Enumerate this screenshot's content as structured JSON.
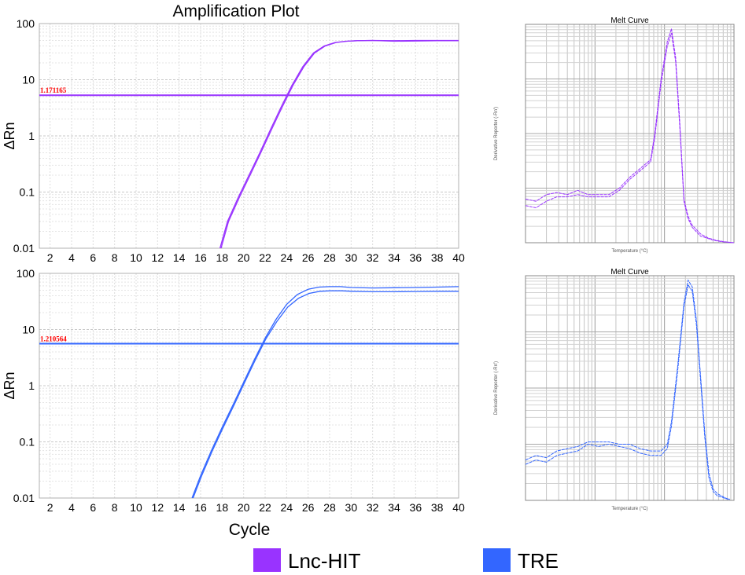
{
  "title": "Amplification Plot",
  "x_axis_label": "Cycle",
  "legend": [
    {
      "label": "Lnc-HIT",
      "color": "#9933ff"
    },
    {
      "label": "TRE",
      "color": "#3366ff"
    }
  ],
  "chart_data": [
    {
      "type": "line",
      "name": "amplification-lnc-hit",
      "title": "",
      "ylabel": "ΔRn",
      "yscale": "log",
      "xlim": [
        1,
        40
      ],
      "ylim": [
        0.01,
        100
      ],
      "x_ticks": [
        "2",
        "4",
        "6",
        "8",
        "10",
        "12",
        "14",
        "16",
        "18",
        "20",
        "22",
        "24",
        "26",
        "28",
        "30",
        "32",
        "34",
        "36",
        "38",
        "40"
      ],
      "y_ticks": [
        "100",
        "10",
        "1",
        "0.1",
        "0.01"
      ],
      "threshold": {
        "label": "1.171165",
        "value": 5.3
      },
      "color": "#9933ff",
      "series": [
        {
          "name": "rep1",
          "x": [
            17.8,
            18.5,
            19.5,
            20.5,
            21.5,
            22.5,
            23.5,
            24.5,
            25.5,
            26.5,
            27.5,
            28.5,
            29.5,
            30.5,
            32,
            34,
            36,
            38,
            40
          ],
          "values": [
            0.01,
            0.03,
            0.08,
            0.2,
            0.5,
            1.3,
            3.3,
            8,
            17,
            30,
            40,
            46,
            48.5,
            49.5,
            50,
            49.5,
            50,
            50,
            50
          ]
        },
        {
          "name": "rep2",
          "x": [
            17.9,
            18.6,
            19.6,
            20.6,
            21.6,
            22.6,
            23.6,
            24.6,
            25.6,
            26.6,
            27.6,
            28.6,
            29.6,
            30.6,
            32,
            34,
            36,
            38,
            40
          ],
          "values": [
            0.01,
            0.03,
            0.08,
            0.2,
            0.5,
            1.3,
            3.3,
            8,
            17,
            30,
            40,
            46,
            48.5,
            49.5,
            50,
            48.5,
            49,
            49.5,
            49.5
          ]
        }
      ]
    },
    {
      "type": "line",
      "name": "amplification-tre",
      "title": "",
      "ylabel": "ΔRn",
      "yscale": "log",
      "xlim": [
        1,
        40
      ],
      "ylim": [
        0.01,
        100
      ],
      "x_ticks": [
        "2",
        "4",
        "6",
        "8",
        "10",
        "12",
        "14",
        "16",
        "18",
        "20",
        "22",
        "24",
        "26",
        "28",
        "30",
        "32",
        "34",
        "36",
        "38",
        "40"
      ],
      "y_ticks": [
        "100",
        "10",
        "1",
        "0.1",
        "0.01"
      ],
      "threshold": {
        "label": "1.210564",
        "value": 5.6
      },
      "color": "#3366ff",
      "series": [
        {
          "name": "rep1",
          "x": [
            15.2,
            16,
            17,
            18,
            19,
            20,
            21,
            22,
            23,
            24,
            25,
            26,
            27,
            28,
            29,
            30,
            32,
            34,
            36,
            38,
            40
          ],
          "values": [
            0.01,
            0.025,
            0.07,
            0.18,
            0.45,
            1.15,
            2.9,
            7,
            15,
            28,
            42,
            52,
            57,
            58,
            58,
            56,
            55,
            55.5,
            56,
            57,
            58
          ]
        },
        {
          "name": "rep2",
          "x": [
            15.3,
            16.1,
            17.1,
            18.1,
            19.1,
            20.1,
            21.1,
            22.1,
            23.1,
            24.1,
            25.1,
            26.1,
            27.1,
            28.1,
            29.1,
            30.1,
            32,
            34,
            36,
            38,
            40
          ],
          "values": [
            0.01,
            0.025,
            0.07,
            0.18,
            0.45,
            1.15,
            2.9,
            7,
            14,
            25,
            36,
            44,
            48,
            49,
            49,
            48,
            47,
            47,
            47.5,
            48,
            48
          ]
        }
      ]
    },
    {
      "type": "line",
      "name": "melt-curve-lnc-hit",
      "title": "Melt Curve",
      "xlabel": "Temperature (°C)",
      "ylabel": "Derivative Reporter (-Rn')",
      "xlim": [
        0,
        100
      ],
      "ylim": [
        0,
        100
      ],
      "color": "#9933ff",
      "series": [
        {
          "name": "rep1",
          "x": [
            0,
            5,
            10,
            15,
            20,
            25,
            30,
            35,
            40,
            45,
            50,
            55,
            60,
            62,
            65,
            68,
            70,
            72,
            74,
            76,
            78,
            80,
            82,
            84,
            86,
            88,
            90,
            92,
            95,
            100
          ],
          "values": [
            20,
            19,
            22,
            23,
            22,
            24,
            22,
            22,
            22,
            25,
            30,
            34,
            38,
            50,
            75,
            92,
            98,
            85,
            55,
            20,
            12,
            8,
            6,
            4,
            3,
            2,
            1.5,
            1,
            0.5,
            0
          ]
        },
        {
          "name": "rep2",
          "x": [
            0,
            5,
            10,
            15,
            20,
            25,
            30,
            35,
            40,
            45,
            50,
            55,
            60,
            62,
            65,
            68,
            70,
            72,
            74,
            76,
            78,
            80,
            82,
            84,
            86,
            88,
            90,
            92,
            95,
            100
          ],
          "values": [
            17,
            16,
            19,
            21,
            21,
            22,
            21,
            21,
            21,
            24,
            29,
            33,
            37,
            48,
            73,
            90,
            96,
            83,
            53,
            19,
            11,
            7,
            5,
            3,
            2.5,
            1.8,
            1.2,
            0.8,
            0.4,
            0
          ]
        }
      ]
    },
    {
      "type": "line",
      "name": "melt-curve-tre",
      "title": "Melt Curve",
      "xlabel": "Temperature (°C)",
      "ylabel": "Derivative Reporter (-Rn')",
      "xlim": [
        0,
        100
      ],
      "ylim": [
        0,
        100
      ],
      "color": "#3366ff",
      "series": [
        {
          "name": "rep1",
          "x": [
            0,
            5,
            10,
            15,
            20,
            25,
            30,
            35,
            40,
            45,
            50,
            55,
            60,
            65,
            68,
            70,
            73,
            76,
            78,
            80,
            82,
            84,
            86,
            88,
            90,
            92,
            94,
            96,
            98
          ],
          "values": [
            18,
            20,
            19,
            22,
            23,
            24,
            26,
            26,
            26,
            25,
            25,
            23,
            22,
            22,
            25,
            35,
            60,
            88,
            98,
            95,
            80,
            55,
            30,
            12,
            5,
            3,
            2,
            1,
            0.5
          ]
        },
        {
          "name": "rep2",
          "x": [
            0,
            5,
            10,
            15,
            20,
            25,
            30,
            35,
            40,
            45,
            50,
            55,
            60,
            65,
            68,
            70,
            73,
            76,
            78,
            80,
            82,
            84,
            86,
            88,
            90,
            92,
            94,
            96,
            98
          ],
          "values": [
            16,
            18,
            17,
            20,
            21,
            22,
            25,
            24,
            25,
            24,
            23,
            21,
            20,
            20,
            23,
            33,
            58,
            86,
            96,
            93,
            78,
            53,
            28,
            10,
            4,
            2,
            1.5,
            0.8,
            0.4
          ]
        }
      ]
    }
  ]
}
